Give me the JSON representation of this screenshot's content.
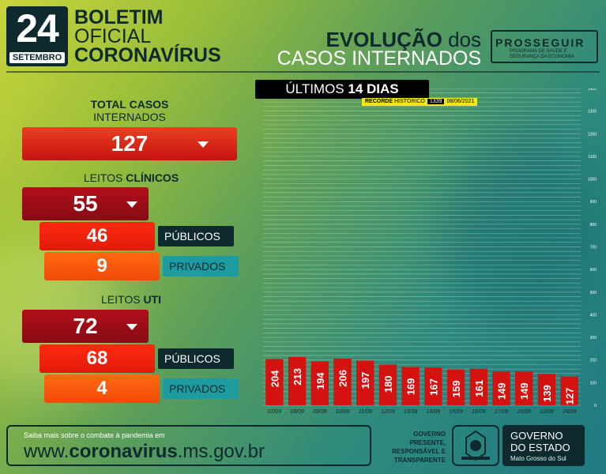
{
  "header": {
    "date_day": "24",
    "date_month": "SETEMBRO",
    "title_line1": "BOLETIM",
    "title_line2": "OFICIAL",
    "title_line3": "CORONAVÍRUS",
    "evo_line1_bold": "EVOLUÇÃO",
    "evo_line1_light": "dos",
    "evo_line2": "CASOS INTERNADOS",
    "program_name": "PROSSEGUIR",
    "program_sub": "PROGRAMA DE SAÚDE E SEGURANÇA DA ECONOMIA"
  },
  "stats": {
    "total": {
      "label_bold": "TOTAL CASOS",
      "label_light": "INTERNADOS",
      "value": "127"
    },
    "clinicos": {
      "label_light": "LEITOS",
      "label_bold": "CLÍNICOS",
      "value": "55",
      "publicos": "46",
      "publicos_label": "PÚBLICOS",
      "privados": "9",
      "privados_label": "PRIVADOS"
    },
    "uti": {
      "label_light": "LEITOS",
      "label_bold": "UTI",
      "value": "72",
      "publicos": "68",
      "publicos_label": "PÚBLICOS",
      "privados": "4",
      "privados_label": "PRIVADOS"
    }
  },
  "chart_header": {
    "light": "ÚLTIMOS",
    "bold": "14 DIAS"
  },
  "record": {
    "label_bold": "RECORDE",
    "label_light": "HISTÓRICO",
    "value": "1339",
    "date": "08/06/2021"
  },
  "chart_data": {
    "type": "bar",
    "categories": [
      "07/09",
      "08/09",
      "09/09",
      "10/09",
      "11/09",
      "12/09",
      "13/09",
      "14/09",
      "15/09",
      "16/09",
      "17/09",
      "20/09",
      "22/09",
      "24/09"
    ],
    "values": [
      204,
      213,
      194,
      206,
      197,
      180,
      169,
      167,
      159,
      161,
      149,
      149,
      139,
      127
    ],
    "ylim": [
      0,
      1400
    ],
    "y_ticks": [
      0,
      100,
      200,
      300,
      400,
      500,
      600,
      700,
      800,
      900,
      1000,
      1100,
      1200,
      1300,
      1400
    ],
    "grid": true,
    "bar_color": "#d4120f"
  },
  "footer": {
    "info": "Saiba mais sobre o combate à pandemia em",
    "url_prefix": "www.",
    "url_bold": "coronavirus",
    "url_suffix": ".ms.gov.br",
    "gov_motto": "GOVERNO PRESENTE, RESPONSÁVEL E TRANSPARENTE",
    "gov_line1": "GOVERNO",
    "gov_line2": "DO ESTADO",
    "gov_line3": "Mato Grosso do Sul"
  }
}
